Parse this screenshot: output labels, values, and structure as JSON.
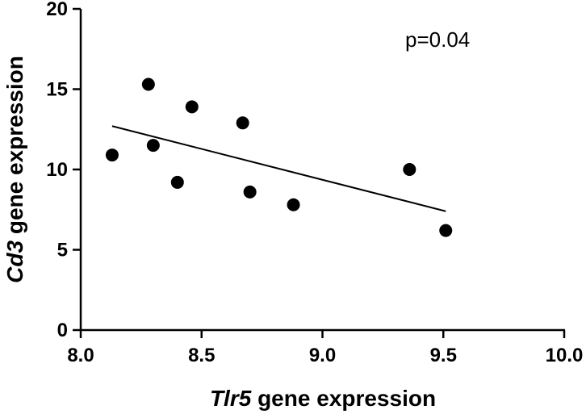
{
  "chart_data": {
    "type": "scatter",
    "title": "",
    "xlabel": "Tlr5 gene expression",
    "xlabel_parts": {
      "italic": "Tlr5",
      "rest": " gene expression"
    },
    "ylabel": "Cd3 gene expression",
    "ylabel_parts": {
      "italic": "Cd3",
      "rest": " gene expression"
    },
    "xlim": [
      8.0,
      10.0
    ],
    "ylim": [
      0,
      20
    ],
    "x_ticks": [
      8.0,
      8.5,
      9.0,
      9.5,
      10.0
    ],
    "x_tick_labels": [
      "8.0",
      "8.5",
      "9.0",
      "9.5",
      "10.0"
    ],
    "y_ticks": [
      0,
      5,
      10,
      15,
      20
    ],
    "y_tick_labels": [
      "0",
      "5",
      "10",
      "15",
      "20"
    ],
    "grid": false,
    "annotation": "p=0.04",
    "points": [
      {
        "x": 8.13,
        "y": 10.9
      },
      {
        "x": 8.28,
        "y": 15.3
      },
      {
        "x": 8.3,
        "y": 11.5
      },
      {
        "x": 8.4,
        "y": 9.2
      },
      {
        "x": 8.46,
        "y": 13.9
      },
      {
        "x": 8.67,
        "y": 12.9
      },
      {
        "x": 8.7,
        "y": 8.6
      },
      {
        "x": 8.88,
        "y": 7.8
      },
      {
        "x": 9.36,
        "y": 10.0
      },
      {
        "x": 9.51,
        "y": 6.2
      }
    ],
    "fit_line": {
      "x": [
        8.13,
        9.51
      ],
      "y": [
        12.7,
        7.4
      ]
    },
    "marker_color": "#000000",
    "line_color": "#000000"
  }
}
